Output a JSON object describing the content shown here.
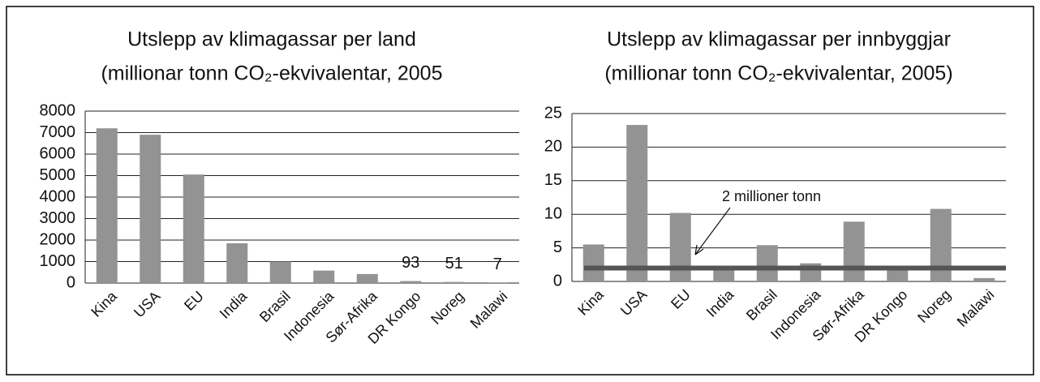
{
  "chart_data": [
    {
      "type": "bar",
      "title": "Utslepp av klimagassar per land",
      "subtitle": "(millionar tonn CO₂-ekvivalentar, 2005",
      "categories": [
        "Kina",
        "USA",
        "EU",
        "India",
        "Brasil",
        "Indonesia",
        "Sør-Afrika",
        "DR Kongo",
        "Noreg",
        "Malawi"
      ],
      "values": [
        7200,
        6900,
        5050,
        1850,
        1000,
        580,
        420,
        93,
        51,
        7
      ],
      "value_labels": [
        null,
        null,
        null,
        null,
        null,
        null,
        null,
        "93",
        "51",
        "7"
      ],
      "color": "#939393",
      "ylim": [
        0,
        8000
      ],
      "yticks": [
        0,
        1000,
        2000,
        3000,
        4000,
        5000,
        6000,
        7000,
        8000
      ],
      "grid": true
    },
    {
      "type": "bar",
      "title": "Utslepp av klimagassar per innbyggjar",
      "subtitle": "(millionar tonn CO₂-ekvivalentar, 2005)",
      "categories": [
        "Kina",
        "USA",
        "EU",
        "India",
        "Brasil",
        "Indonesia",
        "Sør-Afrika",
        "DR Kongo",
        "Noreg",
        "Malawi"
      ],
      "values": [
        5.5,
        23.3,
        10.2,
        1.9,
        5.4,
        2.7,
        8.9,
        2.0,
        10.8,
        0.5
      ],
      "color": "#939393",
      "ylim": [
        0,
        25
      ],
      "yticks": [
        0,
        5,
        10,
        15,
        20,
        25
      ],
      "grid": true,
      "reference_line": {
        "value": 2,
        "label": "2 millioner tonn",
        "color": "#555555"
      }
    }
  ]
}
